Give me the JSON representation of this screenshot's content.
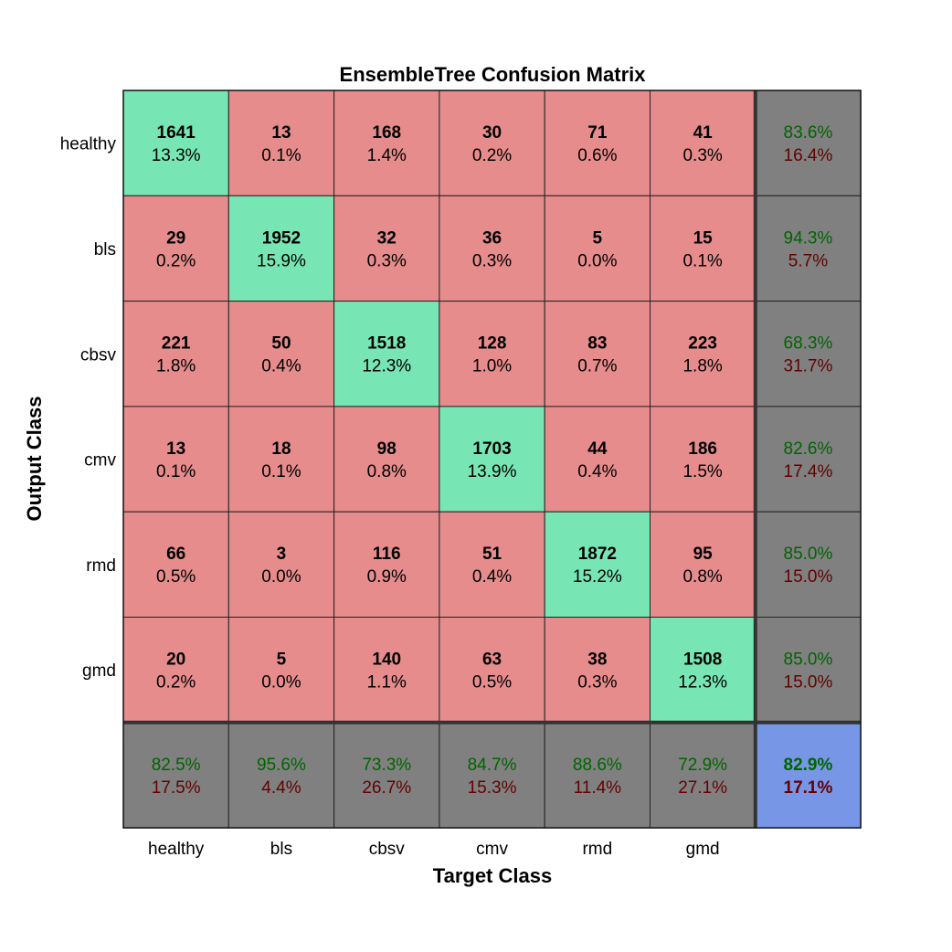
{
  "chart_data": {
    "type": "heatmap",
    "title": "EnsembleTree Confusion Matrix",
    "xlabel": "Target Class",
    "ylabel": "Output Class",
    "classes": [
      "healthy",
      "bls",
      "cbsv",
      "cmv",
      "rmd",
      "gmd"
    ],
    "counts": [
      [
        1641,
        13,
        168,
        30,
        71,
        41
      ],
      [
        29,
        1952,
        32,
        36,
        5,
        15
      ],
      [
        221,
        50,
        1518,
        128,
        83,
        223
      ],
      [
        13,
        18,
        98,
        1703,
        44,
        186
      ],
      [
        66,
        3,
        116,
        51,
        1872,
        95
      ],
      [
        20,
        5,
        140,
        63,
        38,
        1508
      ]
    ],
    "percents": [
      [
        "13.3%",
        "0.1%",
        "1.4%",
        "0.2%",
        "0.6%",
        "0.3%"
      ],
      [
        "0.2%",
        "15.9%",
        "0.3%",
        "0.3%",
        "0.0%",
        "0.1%"
      ],
      [
        "1.8%",
        "0.4%",
        "12.3%",
        "1.0%",
        "0.7%",
        "1.8%"
      ],
      [
        "0.1%",
        "0.1%",
        "0.8%",
        "13.9%",
        "0.4%",
        "1.5%"
      ],
      [
        "0.5%",
        "0.0%",
        "0.9%",
        "0.4%",
        "15.2%",
        "0.8%"
      ],
      [
        "0.2%",
        "0.0%",
        "1.1%",
        "0.5%",
        "0.3%",
        "12.3%"
      ]
    ],
    "row_summary": [
      [
        "83.6%",
        "16.4%"
      ],
      [
        "94.3%",
        "5.7%"
      ],
      [
        "68.3%",
        "31.7%"
      ],
      [
        "82.6%",
        "17.4%"
      ],
      [
        "85.0%",
        "15.0%"
      ],
      [
        "85.0%",
        "15.0%"
      ]
    ],
    "col_summary": [
      [
        "82.5%",
        "17.5%"
      ],
      [
        "95.6%",
        "4.4%"
      ],
      [
        "73.3%",
        "26.7%"
      ],
      [
        "84.7%",
        "15.3%"
      ],
      [
        "88.6%",
        "11.4%"
      ],
      [
        "72.9%",
        "27.1%"
      ]
    ],
    "overall": [
      "82.9%",
      "17.1%"
    ],
    "colors": {
      "diagonal": "#78e6b4",
      "offdiagonal": "#e68c8c",
      "summary": "#808080",
      "overall": "#7896e6",
      "correct_text": "#006400",
      "error_text": "#640000"
    }
  }
}
